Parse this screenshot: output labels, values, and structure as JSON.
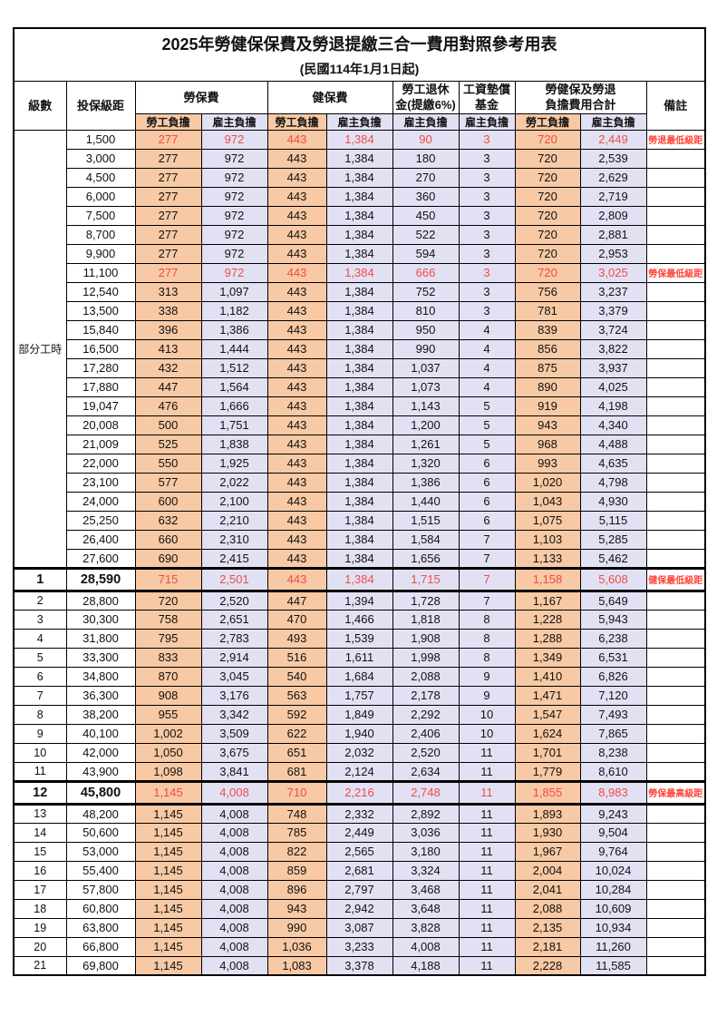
{
  "title": "2025年勞健保保費及勞退提繳三合一費用對照參考用表",
  "subtitle": "(民國114年1月1日起)",
  "header": {
    "level": "級數",
    "salary": "投保級距",
    "labor_ins": "勞保費",
    "health_ins": "健保費",
    "pension": "勞工退休\n金(提繳6%)",
    "wage_fund": "工資墊償\n基金",
    "total": "勞健保及勞退\n負擔費用合計",
    "remark": "備註",
    "employee": "勞工負擔",
    "employer": "雇主負擔"
  },
  "group_label": "部分工時",
  "colors": {
    "employee_bg": "#F7C9A4",
    "employer_bg": "#E2E1F4",
    "red_text": "#F14B44",
    "remark_red": "#FF4438",
    "grid": "#000000"
  },
  "rows": [
    {
      "lv": "",
      "sal": "1,500",
      "a": "277",
      "b": "972",
      "c": "443",
      "d": "1,384",
      "e": "90",
      "f": "3",
      "g": "720",
      "h": "2,449",
      "rm": "勞退最低級距",
      "red": true,
      "pt": true
    },
    {
      "lv": "",
      "sal": "3,000",
      "a": "277",
      "b": "972",
      "c": "443",
      "d": "1,384",
      "e": "180",
      "f": "3",
      "g": "720",
      "h": "2,539",
      "rm": "",
      "pt": true
    },
    {
      "lv": "",
      "sal": "4,500",
      "a": "277",
      "b": "972",
      "c": "443",
      "d": "1,384",
      "e": "270",
      "f": "3",
      "g": "720",
      "h": "2,629",
      "rm": "",
      "pt": true
    },
    {
      "lv": "",
      "sal": "6,000",
      "a": "277",
      "b": "972",
      "c": "443",
      "d": "1,384",
      "e": "360",
      "f": "3",
      "g": "720",
      "h": "2,719",
      "rm": "",
      "pt": true
    },
    {
      "lv": "",
      "sal": "7,500",
      "a": "277",
      "b": "972",
      "c": "443",
      "d": "1,384",
      "e": "450",
      "f": "3",
      "g": "720",
      "h": "2,809",
      "rm": "",
      "pt": true
    },
    {
      "lv": "",
      "sal": "8,700",
      "a": "277",
      "b": "972",
      "c": "443",
      "d": "1,384",
      "e": "522",
      "f": "3",
      "g": "720",
      "h": "2,881",
      "rm": "",
      "pt": true
    },
    {
      "lv": "",
      "sal": "9,900",
      "a": "277",
      "b": "972",
      "c": "443",
      "d": "1,384",
      "e": "594",
      "f": "3",
      "g": "720",
      "h": "2,953",
      "rm": "",
      "pt": true
    },
    {
      "lv": "",
      "sal": "11,100",
      "a": "277",
      "b": "972",
      "c": "443",
      "d": "1,384",
      "e": "666",
      "f": "3",
      "g": "720",
      "h": "3,025",
      "rm": "勞保最低級距",
      "red": true,
      "pt": true
    },
    {
      "lv": "",
      "sal": "12,540",
      "a": "313",
      "b": "1,097",
      "c": "443",
      "d": "1,384",
      "e": "752",
      "f": "3",
      "g": "756",
      "h": "3,237",
      "rm": "",
      "pt": true
    },
    {
      "lv": "",
      "sal": "13,500",
      "a": "338",
      "b": "1,182",
      "c": "443",
      "d": "1,384",
      "e": "810",
      "f": "3",
      "g": "781",
      "h": "3,379",
      "rm": "",
      "pt": true
    },
    {
      "lv": "",
      "sal": "15,840",
      "a": "396",
      "b": "1,386",
      "c": "443",
      "d": "1,384",
      "e": "950",
      "f": "4",
      "g": "839",
      "h": "3,724",
      "rm": "",
      "pt": true
    },
    {
      "lv": "",
      "sal": "16,500",
      "a": "413",
      "b": "1,444",
      "c": "443",
      "d": "1,384",
      "e": "990",
      "f": "4",
      "g": "856",
      "h": "3,822",
      "rm": "",
      "pt": true
    },
    {
      "lv": "",
      "sal": "17,280",
      "a": "432",
      "b": "1,512",
      "c": "443",
      "d": "1,384",
      "e": "1,037",
      "f": "4",
      "g": "875",
      "h": "3,937",
      "rm": "",
      "pt": true
    },
    {
      "lv": "",
      "sal": "17,880",
      "a": "447",
      "b": "1,564",
      "c": "443",
      "d": "1,384",
      "e": "1,073",
      "f": "4",
      "g": "890",
      "h": "4,025",
      "rm": "",
      "pt": true
    },
    {
      "lv": "",
      "sal": "19,047",
      "a": "476",
      "b": "1,666",
      "c": "443",
      "d": "1,384",
      "e": "1,143",
      "f": "5",
      "g": "919",
      "h": "4,198",
      "rm": "",
      "pt": true
    },
    {
      "lv": "",
      "sal": "20,008",
      "a": "500",
      "b": "1,751",
      "c": "443",
      "d": "1,384",
      "e": "1,200",
      "f": "5",
      "g": "943",
      "h": "4,340",
      "rm": "",
      "pt": true
    },
    {
      "lv": "",
      "sal": "21,009",
      "a": "525",
      "b": "1,838",
      "c": "443",
      "d": "1,384",
      "e": "1,261",
      "f": "5",
      "g": "968",
      "h": "4,488",
      "rm": "",
      "pt": true
    },
    {
      "lv": "",
      "sal": "22,000",
      "a": "550",
      "b": "1,925",
      "c": "443",
      "d": "1,384",
      "e": "1,320",
      "f": "6",
      "g": "993",
      "h": "4,635",
      "rm": "",
      "pt": true
    },
    {
      "lv": "",
      "sal": "23,100",
      "a": "577",
      "b": "2,022",
      "c": "443",
      "d": "1,384",
      "e": "1,386",
      "f": "6",
      "g": "1,020",
      "h": "4,798",
      "rm": "",
      "pt": true
    },
    {
      "lv": "",
      "sal": "24,000",
      "a": "600",
      "b": "2,100",
      "c": "443",
      "d": "1,384",
      "e": "1,440",
      "f": "6",
      "g": "1,043",
      "h": "4,930",
      "rm": "",
      "pt": true
    },
    {
      "lv": "",
      "sal": "25,250",
      "a": "632",
      "b": "2,210",
      "c": "443",
      "d": "1,384",
      "e": "1,515",
      "f": "6",
      "g": "1,075",
      "h": "5,115",
      "rm": "",
      "pt": true
    },
    {
      "lv": "",
      "sal": "26,400",
      "a": "660",
      "b": "2,310",
      "c": "443",
      "d": "1,384",
      "e": "1,584",
      "f": "7",
      "g": "1,103",
      "h": "5,285",
      "rm": "",
      "pt": true
    },
    {
      "lv": "",
      "sal": "27,600",
      "a": "690",
      "b": "2,415",
      "c": "443",
      "d": "1,384",
      "e": "1,656",
      "f": "7",
      "g": "1,133",
      "h": "5,462",
      "rm": "",
      "pt": true
    },
    {
      "lv": "1",
      "sal": "28,590",
      "a": "715",
      "b": "2,501",
      "c": "443",
      "d": "1,384",
      "e": "1,715",
      "f": "7",
      "g": "1,158",
      "h": "5,608",
      "rm": "健保最低級距",
      "red": true,
      "em": true
    },
    {
      "lv": "2",
      "sal": "28,800",
      "a": "720",
      "b": "2,520",
      "c": "447",
      "d": "1,394",
      "e": "1,728",
      "f": "7",
      "g": "1,167",
      "h": "5,649",
      "rm": ""
    },
    {
      "lv": "3",
      "sal": "30,300",
      "a": "758",
      "b": "2,651",
      "c": "470",
      "d": "1,466",
      "e": "1,818",
      "f": "8",
      "g": "1,228",
      "h": "5,943",
      "rm": ""
    },
    {
      "lv": "4",
      "sal": "31,800",
      "a": "795",
      "b": "2,783",
      "c": "493",
      "d": "1,539",
      "e": "1,908",
      "f": "8",
      "g": "1,288",
      "h": "6,238",
      "rm": ""
    },
    {
      "lv": "5",
      "sal": "33,300",
      "a": "833",
      "b": "2,914",
      "c": "516",
      "d": "1,611",
      "e": "1,998",
      "f": "8",
      "g": "1,349",
      "h": "6,531",
      "rm": ""
    },
    {
      "lv": "6",
      "sal": "34,800",
      "a": "870",
      "b": "3,045",
      "c": "540",
      "d": "1,684",
      "e": "2,088",
      "f": "9",
      "g": "1,410",
      "h": "6,826",
      "rm": ""
    },
    {
      "lv": "7",
      "sal": "36,300",
      "a": "908",
      "b": "3,176",
      "c": "563",
      "d": "1,757",
      "e": "2,178",
      "f": "9",
      "g": "1,471",
      "h": "7,120",
      "rm": ""
    },
    {
      "lv": "8",
      "sal": "38,200",
      "a": "955",
      "b": "3,342",
      "c": "592",
      "d": "1,849",
      "e": "2,292",
      "f": "10",
      "g": "1,547",
      "h": "7,493",
      "rm": ""
    },
    {
      "lv": "9",
      "sal": "40,100",
      "a": "1,002",
      "b": "3,509",
      "c": "622",
      "d": "1,940",
      "e": "2,406",
      "f": "10",
      "g": "1,624",
      "h": "7,865",
      "rm": ""
    },
    {
      "lv": "10",
      "sal": "42,000",
      "a": "1,050",
      "b": "3,675",
      "c": "651",
      "d": "2,032",
      "e": "2,520",
      "f": "11",
      "g": "1,701",
      "h": "8,238",
      "rm": ""
    },
    {
      "lv": "11",
      "sal": "43,900",
      "a": "1,098",
      "b": "3,841",
      "c": "681",
      "d": "2,124",
      "e": "2,634",
      "f": "11",
      "g": "1,779",
      "h": "8,610",
      "rm": ""
    },
    {
      "lv": "12",
      "sal": "45,800",
      "a": "1,145",
      "b": "4,008",
      "c": "710",
      "d": "2,216",
      "e": "2,748",
      "f": "11",
      "g": "1,855",
      "h": "8,983",
      "rm": "勞保最高級距",
      "red": true,
      "em": true
    },
    {
      "lv": "13",
      "sal": "48,200",
      "a": "1,145",
      "b": "4,008",
      "c": "748",
      "d": "2,332",
      "e": "2,892",
      "f": "11",
      "g": "1,893",
      "h": "9,243",
      "rm": ""
    },
    {
      "lv": "14",
      "sal": "50,600",
      "a": "1,145",
      "b": "4,008",
      "c": "785",
      "d": "2,449",
      "e": "3,036",
      "f": "11",
      "g": "1,930",
      "h": "9,504",
      "rm": ""
    },
    {
      "lv": "15",
      "sal": "53,000",
      "a": "1,145",
      "b": "4,008",
      "c": "822",
      "d": "2,565",
      "e": "3,180",
      "f": "11",
      "g": "1,967",
      "h": "9,764",
      "rm": ""
    },
    {
      "lv": "16",
      "sal": "55,400",
      "a": "1,145",
      "b": "4,008",
      "c": "859",
      "d": "2,681",
      "e": "3,324",
      "f": "11",
      "g": "2,004",
      "h": "10,024",
      "rm": ""
    },
    {
      "lv": "17",
      "sal": "57,800",
      "a": "1,145",
      "b": "4,008",
      "c": "896",
      "d": "2,797",
      "e": "3,468",
      "f": "11",
      "g": "2,041",
      "h": "10,284",
      "rm": ""
    },
    {
      "lv": "18",
      "sal": "60,800",
      "a": "1,145",
      "b": "4,008",
      "c": "943",
      "d": "2,942",
      "e": "3,648",
      "f": "11",
      "g": "2,088",
      "h": "10,609",
      "rm": ""
    },
    {
      "lv": "19",
      "sal": "63,800",
      "a": "1,145",
      "b": "4,008",
      "c": "990",
      "d": "3,087",
      "e": "3,828",
      "f": "11",
      "g": "2,135",
      "h": "10,934",
      "rm": ""
    },
    {
      "lv": "20",
      "sal": "66,800",
      "a": "1,145",
      "b": "4,008",
      "c": "1,036",
      "d": "3,233",
      "e": "4,008",
      "f": "11",
      "g": "2,181",
      "h": "11,260",
      "rm": ""
    },
    {
      "lv": "21",
      "sal": "69,800",
      "a": "1,145",
      "b": "4,008",
      "c": "1,083",
      "d": "3,378",
      "e": "4,188",
      "f": "11",
      "g": "2,228",
      "h": "11,585",
      "rm": ""
    }
  ]
}
